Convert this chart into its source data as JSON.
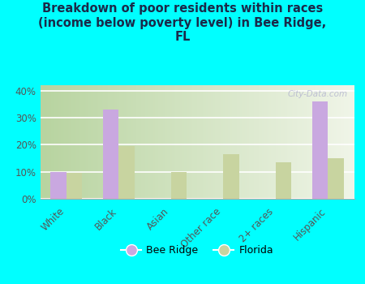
{
  "title": "Breakdown of poor residents within races\n(income below poverty level) in Bee Ridge,\nFL",
  "categories": [
    "White",
    "Black",
    "Asian",
    "Other race",
    "2+ races",
    "Hispanic"
  ],
  "bee_ridge": [
    10,
    33,
    0,
    0,
    0,
    36
  ],
  "florida": [
    9.5,
    19.5,
    10,
    16.5,
    13.5,
    15
  ],
  "bee_ridge_color": "#c9a8e0",
  "florida_color": "#c8d4a0",
  "background_color": "#00ffff",
  "plot_bg_left": "#b8d4a0",
  "plot_bg_right": "#f0f5e8",
  "title_color": "#1a2a4a",
  "ylim": [
    0,
    42
  ],
  "yticks": [
    0,
    10,
    20,
    30,
    40
  ],
  "ytick_labels": [
    "0%",
    "10%",
    "20%",
    "30%",
    "40%"
  ],
  "bar_width": 0.3,
  "watermark": "City-Data.com"
}
